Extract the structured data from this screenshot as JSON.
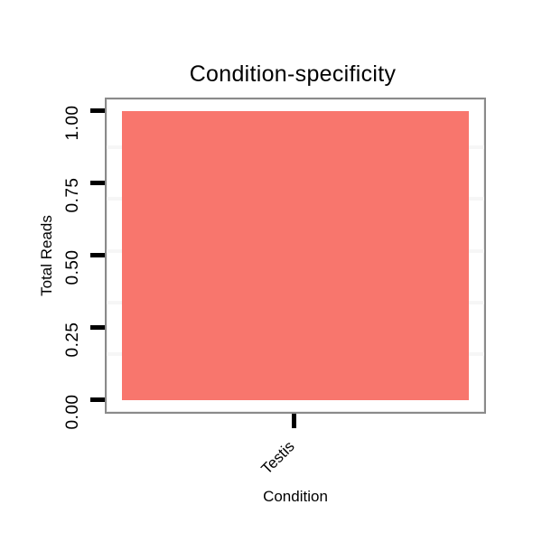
{
  "chart_data": {
    "type": "bar",
    "title": "Condition-specificity",
    "xlabel": "Condition",
    "ylabel": "Total Reads",
    "categories": [
      "Testis"
    ],
    "values": [
      1.0
    ],
    "series": [
      {
        "name": "Testis",
        "values": [
          1.0
        ]
      }
    ],
    "ylim": [
      0,
      1
    ],
    "yticks": [
      "0.00",
      "0.25",
      "0.50",
      "0.75",
      "1.00"
    ],
    "grid": "faint horizontal gridlines on white panel",
    "legend_position": "none",
    "bar_color": "#F8766D",
    "panel_border_color": "#8a8a8a",
    "gridline_color": "#f6f6f6",
    "tick_color": "#000000",
    "text_color": "#000000"
  }
}
